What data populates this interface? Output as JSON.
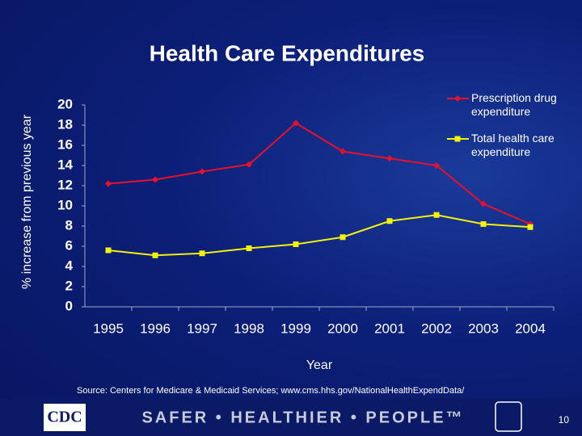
{
  "chart_data": {
    "type": "line",
    "title": "Health Care Expenditures",
    "x_label": "Year",
    "y_label": "% increase from previous year",
    "categories": [
      "1995",
      "1996",
      "1997",
      "1998",
      "1999",
      "2000",
      "2001",
      "2002",
      "2003",
      "2004"
    ],
    "series": [
      {
        "name": "Prescription drug expenditure",
        "color": "#e8102a",
        "marker": "diamond",
        "values": [
          12.2,
          12.6,
          13.4,
          14.1,
          18.2,
          15.4,
          14.7,
          14.0,
          10.2,
          8.2
        ]
      },
      {
        "name": "Total health care expenditure",
        "color": "#f2f20a",
        "marker": "square",
        "values": [
          5.6,
          5.1,
          5.3,
          5.8,
          6.2,
          6.9,
          8.5,
          9.1,
          8.2,
          7.9
        ]
      }
    ],
    "ylim": [
      0,
      20
    ],
    "yticks": [
      0,
      2,
      4,
      6,
      8,
      10,
      12,
      14,
      16,
      18,
      20
    ],
    "grid": false,
    "legend": "top-right"
  },
  "source": "Source:  Centers for Medicare & Medicaid Services; www.cms.hhs.gov/NationalHealthExpendData/",
  "footer": {
    "logo": "CDC",
    "tagline": "SAFER • HEALTHIER • PEOPLE™",
    "page_number": "10"
  }
}
